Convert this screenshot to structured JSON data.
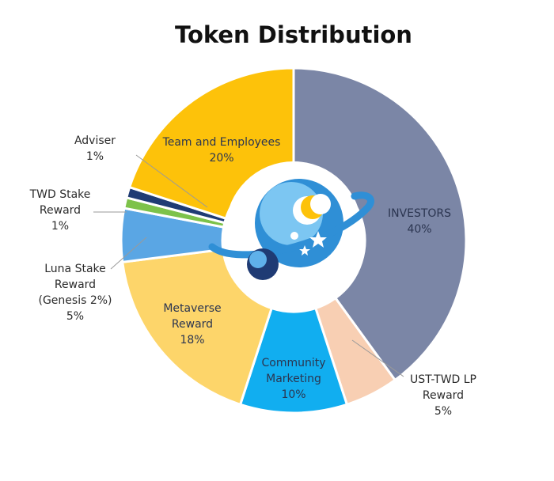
{
  "chart_data": {
    "type": "pie",
    "title": "Token Distribution",
    "slices": [
      {
        "name": "INVESTORS",
        "value_label": "40%",
        "value": 40,
        "color": "#7b86a6"
      },
      {
        "name": "UST-TWD LP Reward",
        "value_label": "5%",
        "value": 5,
        "color": "#f8cfb3"
      },
      {
        "name": "Community Marketing",
        "value_label": "10%",
        "value": 10,
        "color": "#11aef0"
      },
      {
        "name": "Metaverse Reward",
        "value_label": "18%",
        "value": 18,
        "color": "#fdd56a"
      },
      {
        "name": "Luna Stake Reward (Genesis 2%)",
        "value_label": "5%",
        "value": 5,
        "color": "#5aa6e4"
      },
      {
        "name": "TWD Stake Reward",
        "value_label": "1%",
        "value": 1,
        "color": "#7dc24a"
      },
      {
        "name": "Adviser",
        "value_label": "1%",
        "value": 1,
        "color": "#1f3b74"
      },
      {
        "name": "Team and Employees",
        "value_label": "20%",
        "value": 20,
        "color": "#fdc20a"
      }
    ],
    "labels": {
      "investors": [
        "INVESTORS",
        "40%"
      ],
      "ust_twd": [
        "UST-TWD LP",
        "Reward",
        "5%"
      ],
      "community": [
        "Community",
        "Marketing",
        "10%"
      ],
      "metaverse": [
        "Metaverse",
        "Reward",
        "18%"
      ],
      "luna": [
        "Luna Stake",
        "Reward",
        "(Genesis 2%)",
        "5%"
      ],
      "twd_stake": [
        "TWD Stake",
        "Reward",
        "1%"
      ],
      "adviser": [
        "Adviser",
        "1%"
      ],
      "team": [
        "Team and Employees",
        "20%"
      ]
    },
    "legend": "none",
    "center_logo": "planet-logo-icon"
  }
}
